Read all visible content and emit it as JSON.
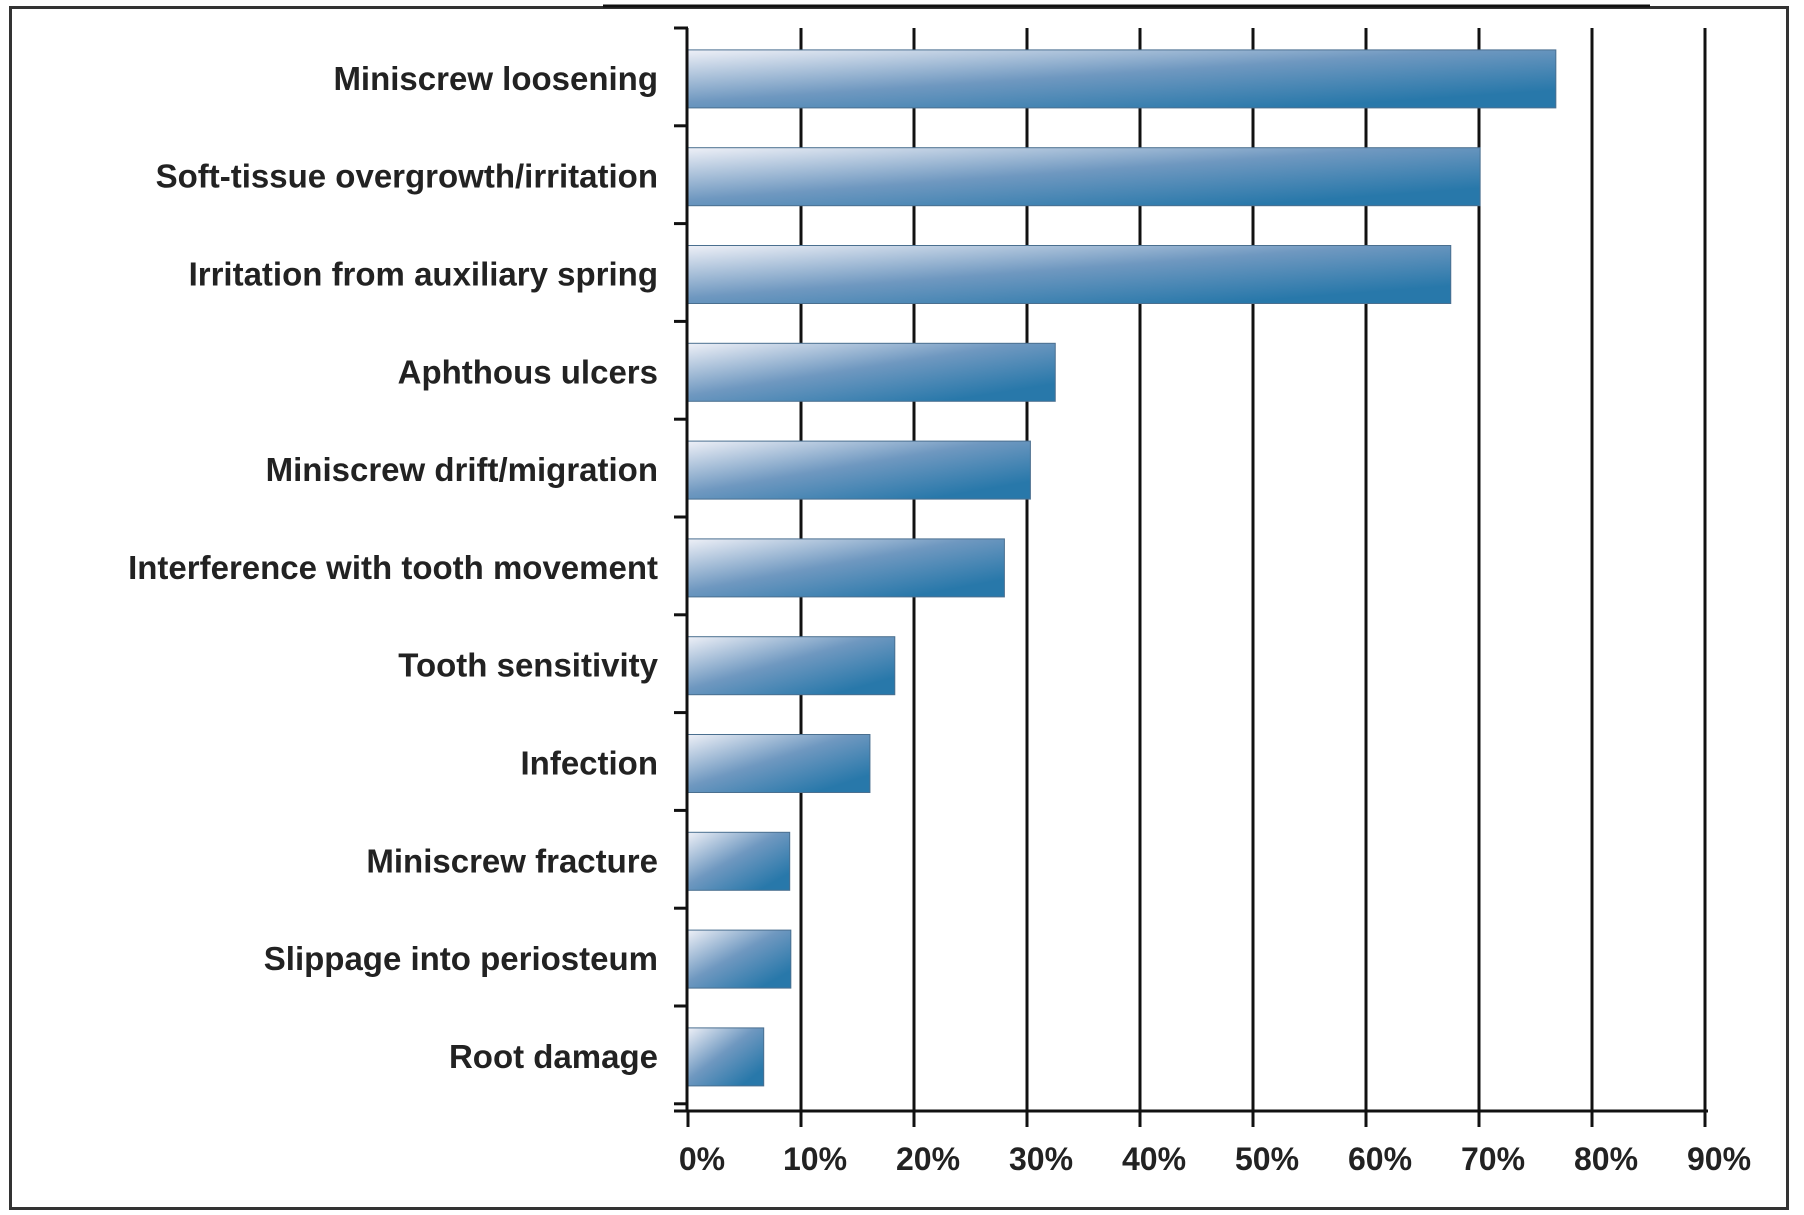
{
  "chart_data": {
    "type": "bar",
    "orientation": "horizontal",
    "categories": [
      "Miniscrew loosening",
      "Soft-tissue overgrowth/irritation",
      "Irritation from auxiliary spring",
      "Aphthous ulcers",
      "Miniscrew drift/migration",
      "Interference with tooth movement",
      "Tooth sensitivity",
      "Infection",
      "Miniscrew fracture",
      "Slippage into periosteum",
      "Root damage"
    ],
    "values": [
      76.8,
      70.1,
      67.5,
      32.5,
      30.3,
      28.0,
      18.3,
      16.1,
      9.0,
      9.1,
      6.7
    ],
    "unit": "%",
    "title": "",
    "xlabel": "",
    "ylabel": "",
    "xlim": [
      0,
      90
    ],
    "xticks": [
      "0%",
      "10%",
      "20%",
      "30%",
      "40%",
      "50%",
      "60%",
      "70%",
      "80%",
      "90%"
    ],
    "grid": "vertical",
    "legend": "none",
    "colors": {
      "bar_dark": "#2878aa",
      "bar_light": "#eef0f7",
      "axis": "#111111",
      "text": "#222222"
    }
  }
}
